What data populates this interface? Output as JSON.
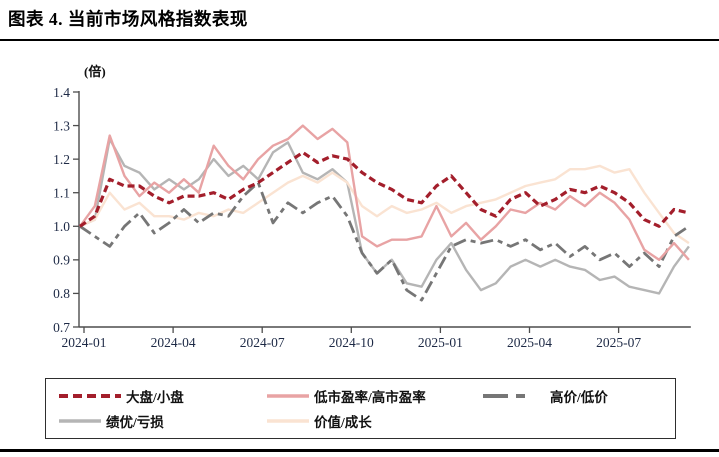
{
  "title": "图表 4. 当前市场风格指数表现",
  "chart_data": {
    "type": "line",
    "unit_label": "(倍)",
    "ylim": [
      0.7,
      1.4
    ],
    "y_ticks": [
      "1.4",
      "1.3",
      "1.2",
      "1.1",
      "1.0",
      "0.9",
      "0.8",
      "0.7"
    ],
    "x_tick_labels": [
      "2024-01",
      "2024-04",
      "2024-07",
      "2024-10",
      "2025-01",
      "2025-04",
      "2025-07"
    ],
    "x_tick_months": [
      0,
      3,
      6,
      9,
      12,
      15,
      18
    ],
    "x_start_month": 0,
    "x_step_months": 0.5,
    "grid": false,
    "legend_position": "bottom-box",
    "axis_color": "#4d4d4d",
    "series": [
      {
        "name": "大盘/小盘",
        "color": "#A31E2B",
        "width": 3.2,
        "dash": "7 4",
        "legend_dash": "9 5",
        "values": [
          1.0,
          1.03,
          1.14,
          1.12,
          1.12,
          1.09,
          1.07,
          1.09,
          1.09,
          1.1,
          1.08,
          1.11,
          1.13,
          1.16,
          1.19,
          1.22,
          1.19,
          1.21,
          1.2,
          1.16,
          1.13,
          1.11,
          1.08,
          1.07,
          1.12,
          1.15,
          1.1,
          1.05,
          1.03,
          1.08,
          1.1,
          1.06,
          1.08,
          1.11,
          1.1,
          1.12,
          1.1,
          1.07,
          1.02,
          1.0,
          1.05,
          1.04
        ]
      },
      {
        "name": "低市盈率/高市盈率",
        "color": "#E8A3A4",
        "width": 2.4,
        "dash": null,
        "legend_dash": null,
        "values": [
          1.0,
          1.06,
          1.27,
          1.15,
          1.09,
          1.13,
          1.1,
          1.14,
          1.1,
          1.24,
          1.18,
          1.14,
          1.2,
          1.24,
          1.26,
          1.3,
          1.26,
          1.29,
          1.25,
          0.97,
          0.94,
          0.96,
          0.96,
          0.97,
          1.06,
          0.97,
          1.01,
          0.96,
          1.0,
          1.05,
          1.04,
          1.07,
          1.05,
          1.09,
          1.06,
          1.1,
          1.07,
          1.02,
          0.93,
          0.9,
          0.95,
          0.9
        ]
      },
      {
        "name": "高价/低价",
        "color": "#767676",
        "width": 2.8,
        "dash": "13 5 5 5",
        "legend_dash": "25 8 9 60",
        "values": [
          1.0,
          0.97,
          0.94,
          1.0,
          1.04,
          0.98,
          1.01,
          1.05,
          1.01,
          1.04,
          1.03,
          1.09,
          1.13,
          1.01,
          1.07,
          1.04,
          1.07,
          1.09,
          1.03,
          0.92,
          0.86,
          0.9,
          0.81,
          0.78,
          0.86,
          0.94,
          0.96,
          0.95,
          0.96,
          0.94,
          0.96,
          0.93,
          0.95,
          0.91,
          0.94,
          0.9,
          0.92,
          0.88,
          0.92,
          0.88,
          0.97,
          1.0
        ]
      },
      {
        "name": "绩优/亏损",
        "color": "#B5B5B5",
        "width": 2.4,
        "dash": null,
        "legend_dash": null,
        "values": [
          1.0,
          1.02,
          1.26,
          1.18,
          1.16,
          1.11,
          1.14,
          1.11,
          1.14,
          1.2,
          1.15,
          1.18,
          1.14,
          1.22,
          1.25,
          1.16,
          1.14,
          1.17,
          1.13,
          0.92,
          0.86,
          0.9,
          0.83,
          0.82,
          0.9,
          0.95,
          0.87,
          0.81,
          0.83,
          0.88,
          0.9,
          0.88,
          0.9,
          0.88,
          0.87,
          0.84,
          0.85,
          0.82,
          0.81,
          0.8,
          0.88,
          0.94
        ]
      },
      {
        "name": "价值/成长",
        "color": "#FAE3D2",
        "width": 2.4,
        "dash": null,
        "legend_dash": null,
        "values": [
          1.0,
          1.02,
          1.1,
          1.05,
          1.07,
          1.03,
          1.03,
          1.02,
          1.04,
          1.03,
          1.05,
          1.04,
          1.07,
          1.1,
          1.13,
          1.15,
          1.13,
          1.16,
          1.13,
          1.06,
          1.03,
          1.06,
          1.04,
          1.05,
          1.07,
          1.04,
          1.06,
          1.07,
          1.08,
          1.1,
          1.12,
          1.13,
          1.14,
          1.17,
          1.17,
          1.18,
          1.16,
          1.17,
          1.1,
          1.04,
          0.98,
          0.95
        ]
      }
    ],
    "legend_rows": [
      [
        0,
        1,
        2
      ],
      [
        3,
        4
      ]
    ],
    "draw_order": [
      3,
      4,
      2,
      1,
      0
    ]
  }
}
